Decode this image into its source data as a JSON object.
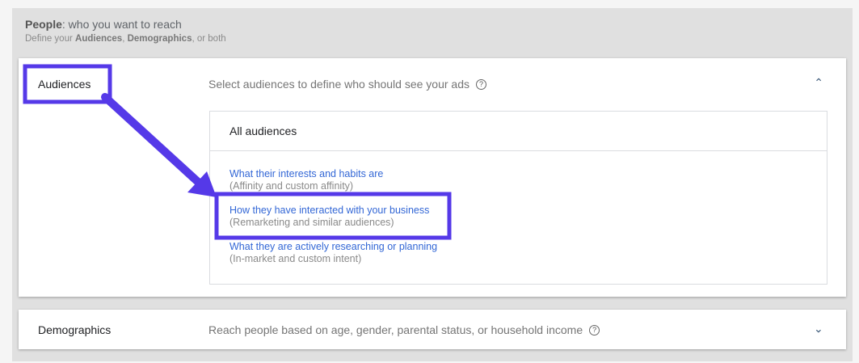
{
  "header": {
    "title_bold": "People",
    "title_rest": ": who you want to reach",
    "sub_pre": "Define your ",
    "sub_b1": "Audiences",
    "sub_mid": ", ",
    "sub_b2": "Demographics",
    "sub_post": ", or both"
  },
  "audiences": {
    "label": "Audiences",
    "description": "Select audiences to define who should see your ads",
    "help_icon": "?",
    "chevron": "up",
    "inner_title": "All audiences",
    "options": [
      {
        "title": "What their interests and habits are",
        "subtitle": "(Affinity and custom affinity)"
      },
      {
        "title": "How they have interacted with your business",
        "subtitle": "(Remarketing and similar audiences)"
      },
      {
        "title": "What they are actively researching or planning",
        "subtitle": "(In-market and custom intent)"
      }
    ]
  },
  "demographics": {
    "label": "Demographics",
    "description": "Reach people based on age, gender, parental status, or household income",
    "help_icon": "?",
    "chevron": "down"
  },
  "annotation_color": "#5539e8"
}
